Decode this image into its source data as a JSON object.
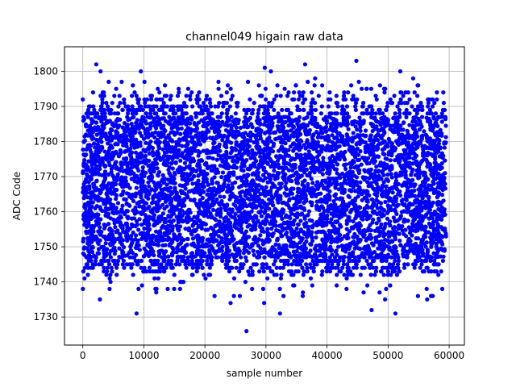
{
  "chart_data": {
    "type": "scatter",
    "title": "channel049 higain raw data",
    "xlabel": "sample number",
    "ylabel": "ADC Code",
    "xlim": [
      -3000,
      62500
    ],
    "ylim": [
      1722,
      1807
    ],
    "x_ticks": [
      0,
      10000,
      20000,
      30000,
      40000,
      50000,
      60000
    ],
    "x_tick_labels": [
      "0",
      "10000",
      "20000",
      "30000",
      "40000",
      "50000",
      "60000"
    ],
    "y_ticks": [
      1730,
      1740,
      1750,
      1760,
      1770,
      1780,
      1790,
      1800
    ],
    "y_tick_labels": [
      "1730",
      "1740",
      "1750",
      "1760",
      "1770",
      "1780",
      "1790",
      "1800"
    ],
    "grid": true,
    "marker_color": "#0000ff",
    "series": [
      {
        "n_samples": 59500,
        "x_range": [
          0,
          59500
        ],
        "dense_band": [
          1747,
          1787
        ],
        "typical_envelope": [
          1741,
          1795
        ],
        "outliers": [
          {
            "x": 2200,
            "y": 1802
          },
          {
            "x": 2900,
            "y": 1800
          },
          {
            "x": 9500,
            "y": 1800
          },
          {
            "x": 29800,
            "y": 1801
          },
          {
            "x": 30800,
            "y": 1800
          },
          {
            "x": 36400,
            "y": 1802
          },
          {
            "x": 44800,
            "y": 1803
          },
          {
            "x": 52000,
            "y": 1800
          },
          {
            "x": 54100,
            "y": 1798
          },
          {
            "x": 8800,
            "y": 1731
          },
          {
            "x": 26800,
            "y": 1726
          },
          {
            "x": 32300,
            "y": 1731
          },
          {
            "x": 51200,
            "y": 1731
          },
          {
            "x": 47300,
            "y": 1732
          },
          {
            "x": 2800,
            "y": 1735
          },
          {
            "x": 24200,
            "y": 1734
          },
          {
            "x": 29700,
            "y": 1734
          },
          {
            "x": 49500,
            "y": 1735
          },
          {
            "x": 56400,
            "y": 1735
          }
        ]
      }
    ]
  }
}
